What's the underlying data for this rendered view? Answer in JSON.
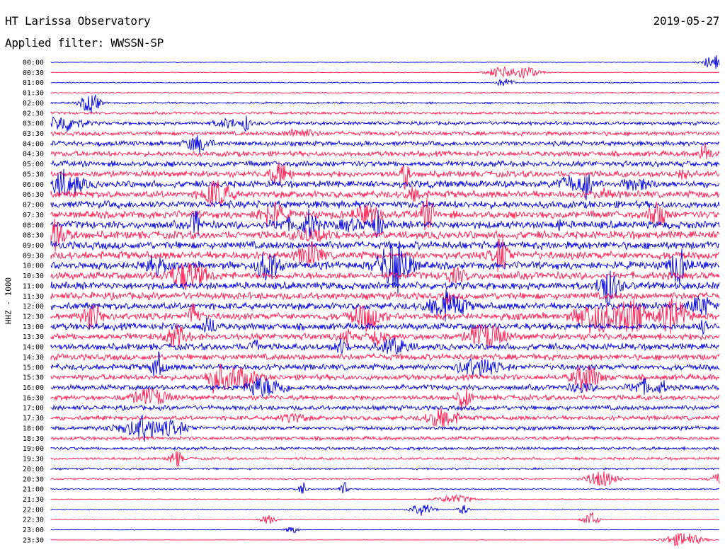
{
  "header": {
    "station": "HT Larissa Observatory",
    "date": "2019-05-27",
    "filter_label": "Applied filter: WWSSN-SP"
  },
  "chart_data": {
    "type": "line",
    "title": "HT Larissa Observatory",
    "ylabel": "HHZ - 1000",
    "traces_per_hour": 2,
    "colors": {
      "even": "#0000dd",
      "odd": "#ff1a4f"
    },
    "rows": [
      {
        "label": "00:00",
        "amp": 0.08
      },
      {
        "label": "00:30",
        "amp": 0.1
      },
      {
        "label": "01:00",
        "amp": 0.14
      },
      {
        "label": "01:30",
        "amp": 0.18
      },
      {
        "label": "02:00",
        "amp": 0.24
      },
      {
        "label": "02:30",
        "amp": 0.34
      },
      {
        "label": "03:00",
        "amp": 0.45
      },
      {
        "label": "03:30",
        "amp": 0.55
      },
      {
        "label": "04:00",
        "amp": 0.62
      },
      {
        "label": "04:30",
        "amp": 0.68
      },
      {
        "label": "05:00",
        "amp": 0.74
      },
      {
        "label": "05:30",
        "amp": 0.8
      },
      {
        "label": "06:00",
        "amp": 0.86
      },
      {
        "label": "06:30",
        "amp": 0.9
      },
      {
        "label": "07:00",
        "amp": 0.94
      },
      {
        "label": "07:30",
        "amp": 0.96
      },
      {
        "label": "08:00",
        "amp": 0.98
      },
      {
        "label": "08:30",
        "amp": 1.0
      },
      {
        "label": "09:00",
        "amp": 1.0
      },
      {
        "label": "09:30",
        "amp": 1.0
      },
      {
        "label": "10:00",
        "amp": 0.98
      },
      {
        "label": "10:30",
        "amp": 0.96
      },
      {
        "label": "11:00",
        "amp": 0.94
      },
      {
        "label": "11:30",
        "amp": 0.92
      },
      {
        "label": "12:00",
        "amp": 0.9
      },
      {
        "label": "12:30",
        "amp": 0.9
      },
      {
        "label": "13:00",
        "amp": 0.88
      },
      {
        "label": "13:30",
        "amp": 0.86
      },
      {
        "label": "14:00",
        "amp": 0.84
      },
      {
        "label": "14:30",
        "amp": 0.8
      },
      {
        "label": "15:00",
        "amp": 0.78
      },
      {
        "label": "15:30",
        "amp": 0.74
      },
      {
        "label": "16:00",
        "amp": 0.7
      },
      {
        "label": "16:30",
        "amp": 0.66
      },
      {
        "label": "17:00",
        "amp": 0.62
      },
      {
        "label": "17:30",
        "amp": 0.58
      },
      {
        "label": "18:00",
        "amp": 0.52
      },
      {
        "label": "18:30",
        "amp": 0.46
      },
      {
        "label": "19:00",
        "amp": 0.4
      },
      {
        "label": "19:30",
        "amp": 0.34
      },
      {
        "label": "20:00",
        "amp": 0.26
      },
      {
        "label": "20:30",
        "amp": 0.2
      },
      {
        "label": "21:00",
        "amp": 0.16
      },
      {
        "label": "21:30",
        "amp": 0.12
      },
      {
        "label": "22:00",
        "amp": 0.1
      },
      {
        "label": "22:30",
        "amp": 0.08
      },
      {
        "label": "23:00",
        "amp": 0.07
      },
      {
        "label": "23:30",
        "amp": 0.06
      }
    ]
  }
}
